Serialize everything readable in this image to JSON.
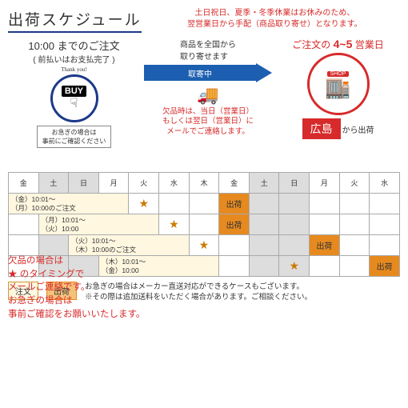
{
  "title": "出荷スケジュール",
  "notice_l1": "土日祝日、夏季・冬季休業はお休みのため、",
  "notice_l2": "翌営業日から手配（商品取り寄せ）となります。",
  "order_time": "10:00 までのご注文",
  "order_sub": "( 前払いはお支払完了 )",
  "thankyou": "Thank you!",
  "buy": "BUY",
  "hand": "☟",
  "urgent_l1": "お急ぎの場合は",
  "urgent_l2": "事前にご確認ください",
  "collect_l1": "商品を全国から",
  "collect_l2": "取り寄せます",
  "arrow_label": "取寄中",
  "truck": "🚚",
  "stockout_l1": "欠品時は、当日（営業日）",
  "stockout_l2": "もしくは翌日（営業日）に",
  "stockout_l3": "メールでご連絡します。",
  "days_prefix": "ご注文の",
  "days_num": "4~5",
  "days_suffix": "営業日",
  "shop_sign": "SHOP",
  "shop_body": "🏬",
  "hiroshima": "広島",
  "from": "から出荷",
  "days": [
    "金",
    "土",
    "日",
    "月",
    "火",
    "水",
    "木",
    "金",
    "土",
    "日",
    "月",
    "火",
    "水"
  ],
  "weekend_idx": [
    1,
    2,
    8,
    9
  ],
  "rows": [
    {
      "order_span": 4,
      "order_l1": "（金）10:01～",
      "order_l2": "（月）10:00のご注文",
      "cells": [
        "star",
        "",
        "",
        "ship",
        "",
        "",
        "",
        "",
        ""
      ]
    },
    {
      "order_span": 5,
      "pre": 1,
      "order_l1": "（月）10:01～",
      "order_l2": "（火）10:00",
      "cells": [
        "star",
        "",
        "ship",
        "",
        "",
        "",
        "",
        ""
      ]
    },
    {
      "order_span": 6,
      "pre": 2,
      "order_l1": "（火）10:01～",
      "order_l2": "（木）10:00のご注文",
      "cells": [
        "star",
        "",
        "",
        "",
        "ship",
        "",
        ""
      ]
    },
    {
      "order_span": 7,
      "pre": 3,
      "order_l1": "（木）10:01～",
      "order_l2": "（金）10:00",
      "cells": [
        "",
        "",
        "star",
        "",
        "",
        "ship"
      ]
    }
  ],
  "ship_label": "出荷",
  "overlay_l1": "欠品の場合は",
  "overlay_l2": "★ のタイミングで",
  "overlay_l3": "メールご連絡です。",
  "overlay_l4": "お急ぎの場合は",
  "overlay_l5": "事前ご確認をお願いいたします。",
  "lg_order": "注文",
  "lg_ship": "出荷",
  "legend_l1": "お急ぎの場合はメーカー直送対応ができるケースもございます。",
  "legend_l2": "※その際は追加送料をいただく場合があります。ご相談ください。",
  "colors": {
    "primary": "#1c3a8a",
    "arrow": "#1c5fb0",
    "accent": "#d72a2a",
    "ship": "#e68a1f",
    "order_bg": "#fff7e0",
    "weekend": "#ddd"
  }
}
